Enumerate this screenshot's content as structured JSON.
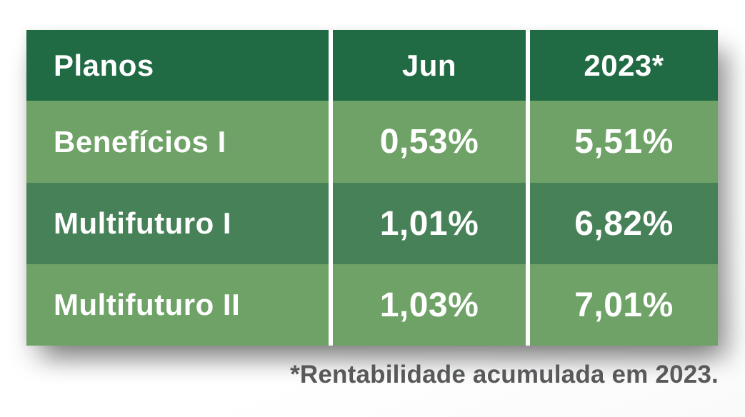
{
  "chart_data": {
    "type": "table",
    "title": "",
    "columns": [
      "Planos",
      "Jun",
      "2023*"
    ],
    "rows": [
      [
        "Benefícios I",
        "0,53%",
        "5,51%"
      ],
      [
        "Multifuturo I",
        "1,01%",
        "6,82%"
      ],
      [
        "Multifuturo II",
        "1,03%",
        "7,01%"
      ]
    ],
    "footnote": "*Rentabilidade acumulada em 2023."
  },
  "table": {
    "columns": [
      "Planos",
      "Jun",
      "2023*"
    ],
    "rows": [
      {
        "plan": "Benefícios I",
        "jun": "0,53%",
        "ytd": "5,51%"
      },
      {
        "plan": "Multifuturo I",
        "jun": "1,01%",
        "ytd": "6,82%"
      },
      {
        "plan": "Multifuturo II",
        "jun": "1,03%",
        "ytd": "7,01%"
      }
    ]
  },
  "footnote": "*Rentabilidade acumulada em 2023.",
  "colors": {
    "header_bg": "#206a44",
    "row_light_bg": "#6ea266",
    "row_medium_bg": "#478158",
    "table_text": "#ffffff",
    "divider": "#ffffff",
    "footnote_text": "#58595b"
  }
}
